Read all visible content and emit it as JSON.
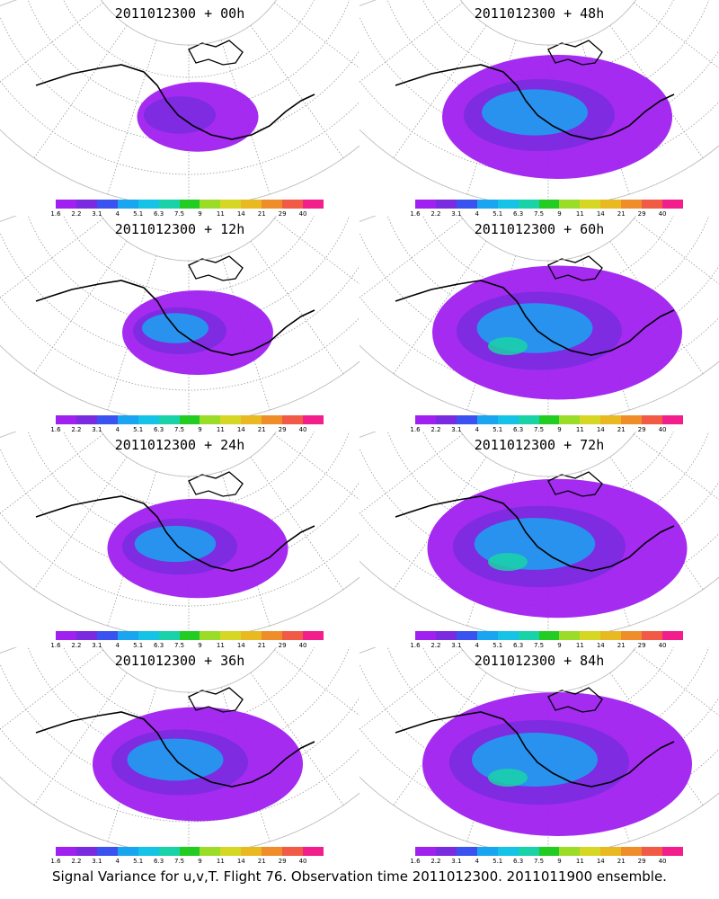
{
  "panels": [
    {
      "title": "2011012300 + 00h",
      "coverage": 0.25
    },
    {
      "title": "2011012300 + 12h",
      "coverage": 0.4
    },
    {
      "title": "2011012300 + 24h",
      "coverage": 0.55
    },
    {
      "title": "2011012300 + 36h",
      "coverage": 0.7
    },
    {
      "title": "2011012300 + 48h",
      "coverage": 0.8
    },
    {
      "title": "2011012300 + 60h",
      "coverage": 0.9
    },
    {
      "title": "2011012300 + 72h",
      "coverage": 0.95
    },
    {
      "title": "2011012300 + 84h",
      "coverage": 1.0
    }
  ],
  "colorbar": {
    "labels": [
      "1.6",
      "2.2",
      "3.1",
      "4",
      "5.1",
      "6.3",
      "7.5",
      "9",
      "11",
      "14",
      "21",
      "29",
      "40"
    ],
    "colors": [
      "#a020f0",
      "#7a2bdf",
      "#3a52f0",
      "#19a5f0",
      "#14c3e6",
      "#1ad2a8",
      "#22cc22",
      "#9bdc29",
      "#d6d624",
      "#e8b921",
      "#ef8d2b",
      "#f05a46",
      "#f21e8c"
    ]
  },
  "caption": "Signal Variance for u,v,T. Flight 76. Observation time 2011012300. 2011011900 ensemble."
}
